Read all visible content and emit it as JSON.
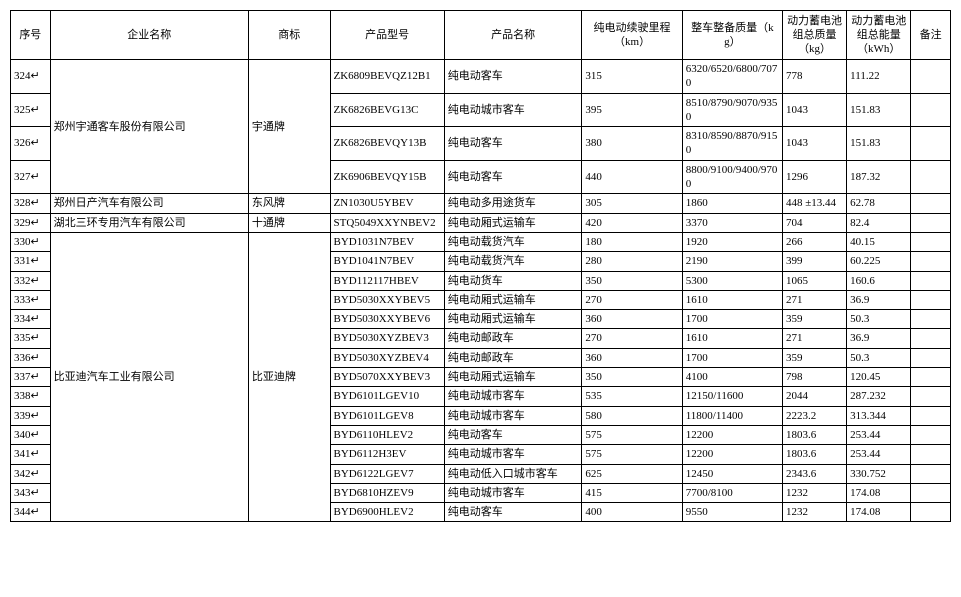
{
  "headers": {
    "seq": "序号",
    "company": "企业名称",
    "brand": "商标",
    "model": "产品型号",
    "prodname": "产品名称",
    "range": "纯电动续驶里程（km）",
    "mass": "整车整备质量（kg）",
    "batmass": "动力蓄电池组总质量（kg）",
    "batenergy": "动力蓄电池组总能量（kWh）",
    "remark": "备注"
  },
  "groups": [
    {
      "company": "郑州宇通客车股份有限公司",
      "brand": "宇通牌",
      "rows": [
        {
          "seq": "324",
          "model": "ZK6809BEVQZ12B1",
          "prodname": "纯电动客车",
          "range": "315",
          "mass": "6320/6520/6800/7070",
          "batmass": "778",
          "batenergy": "111.22",
          "remark": ""
        },
        {
          "seq": "325",
          "model": "ZK6826BEVG13C",
          "prodname": "纯电动城市客车",
          "range": "395",
          "mass": "8510/8790/9070/9350",
          "batmass": "1043",
          "batenergy": "151.83",
          "remark": ""
        },
        {
          "seq": "326",
          "model": "ZK6826BEVQY13B",
          "prodname": "纯电动客车",
          "range": "380",
          "mass": "8310/8590/8870/9150",
          "batmass": "1043",
          "batenergy": "151.83",
          "remark": ""
        },
        {
          "seq": "327",
          "model": "ZK6906BEVQY15B",
          "prodname": "纯电动客车",
          "range": "440",
          "mass": "8800/9100/9400/9700",
          "batmass": "1296",
          "batenergy": "187.32",
          "remark": ""
        }
      ]
    },
    {
      "company": "郑州日产汽车有限公司",
      "brand": "东风牌",
      "rows": [
        {
          "seq": "328",
          "model": "ZN1030U5YBEV",
          "prodname": "纯电动多用途货车",
          "range": "305",
          "mass": "1860",
          "batmass": "448 ±13.44",
          "batenergy": "62.78",
          "remark": ""
        }
      ]
    },
    {
      "company": "湖北三环专用汽车有限公司",
      "brand": "十通牌",
      "rows": [
        {
          "seq": "329",
          "model": "STQ5049XXYNBEV2",
          "prodname": "纯电动厢式运输车",
          "range": "420",
          "mass": "3370",
          "batmass": "704",
          "batenergy": "82.4",
          "remark": ""
        }
      ]
    },
    {
      "company": "比亚迪汽车工业有限公司",
      "brand": "比亚迪牌",
      "rows": [
        {
          "seq": "330",
          "model": "BYD1031N7BEV",
          "prodname": "纯电动载货汽车",
          "range": "180",
          "mass": "1920",
          "batmass": "266",
          "batenergy": "40.15",
          "remark": ""
        },
        {
          "seq": "331",
          "model": "BYD1041N7BEV",
          "prodname": "纯电动载货汽车",
          "range": "280",
          "mass": "2190",
          "batmass": "399",
          "batenergy": "60.225",
          "remark": ""
        },
        {
          "seq": "332",
          "model": "BYD112117HBEV",
          "prodname": "纯电动货车",
          "range": "350",
          "mass": "5300",
          "batmass": "1065",
          "batenergy": "160.6",
          "remark": ""
        },
        {
          "seq": "333",
          "model": "BYD5030XXYBEV5",
          "prodname": "纯电动厢式运输车",
          "range": "270",
          "mass": "1610",
          "batmass": "271",
          "batenergy": "36.9",
          "remark": ""
        },
        {
          "seq": "334",
          "model": "BYD5030XXYBEV6",
          "prodname": "纯电动厢式运输车",
          "range": "360",
          "mass": "1700",
          "batmass": "359",
          "batenergy": "50.3",
          "remark": ""
        },
        {
          "seq": "335",
          "model": "BYD5030XYZBEV3",
          "prodname": "纯电动邮政车",
          "range": "270",
          "mass": "1610",
          "batmass": "271",
          "batenergy": "36.9",
          "remark": ""
        },
        {
          "seq": "336",
          "model": "BYD5030XYZBEV4",
          "prodname": "纯电动邮政车",
          "range": "360",
          "mass": "1700",
          "batmass": "359",
          "batenergy": "50.3",
          "remark": ""
        },
        {
          "seq": "337",
          "model": "BYD5070XXYBEV3",
          "prodname": "纯电动厢式运输车",
          "range": "350",
          "mass": "4100",
          "batmass": "798",
          "batenergy": "120.45",
          "remark": ""
        },
        {
          "seq": "338",
          "model": "BYD6101LGEV10",
          "prodname": "纯电动城市客车",
          "range": "535",
          "mass": "12150/11600",
          "batmass": "2044",
          "batenergy": "287.232",
          "remark": ""
        },
        {
          "seq": "339",
          "model": "BYD6101LGEV8",
          "prodname": "纯电动城市客车",
          "range": "580",
          "mass": "11800/11400",
          "batmass": "2223.2",
          "batenergy": "313.344",
          "remark": ""
        },
        {
          "seq": "340",
          "model": "BYD6110HLEV2",
          "prodname": "纯电动客车",
          "range": "575",
          "mass": "12200",
          "batmass": "1803.6",
          "batenergy": "253.44",
          "remark": ""
        },
        {
          "seq": "341",
          "model": "BYD6112H3EV",
          "prodname": "纯电动城市客车",
          "range": "575",
          "mass": "12200",
          "batmass": "1803.6",
          "batenergy": "253.44",
          "remark": ""
        },
        {
          "seq": "342",
          "model": "BYD6122LGEV7",
          "prodname": "纯电动低入口城市客车",
          "range": "625",
          "mass": "12450",
          "batmass": "2343.6",
          "batenergy": "330.752",
          "remark": ""
        },
        {
          "seq": "343",
          "model": "BYD6810HZEV9",
          "prodname": "纯电动城市客车",
          "range": "415",
          "mass": "7700/8100",
          "batmass": "1232",
          "batenergy": "174.08",
          "remark": ""
        },
        {
          "seq": "344",
          "model": "BYD6900HLEV2",
          "prodname": "纯电动客车",
          "range": "400",
          "mass": "9550",
          "batmass": "1232",
          "batenergy": "174.08",
          "remark": ""
        }
      ]
    }
  ]
}
